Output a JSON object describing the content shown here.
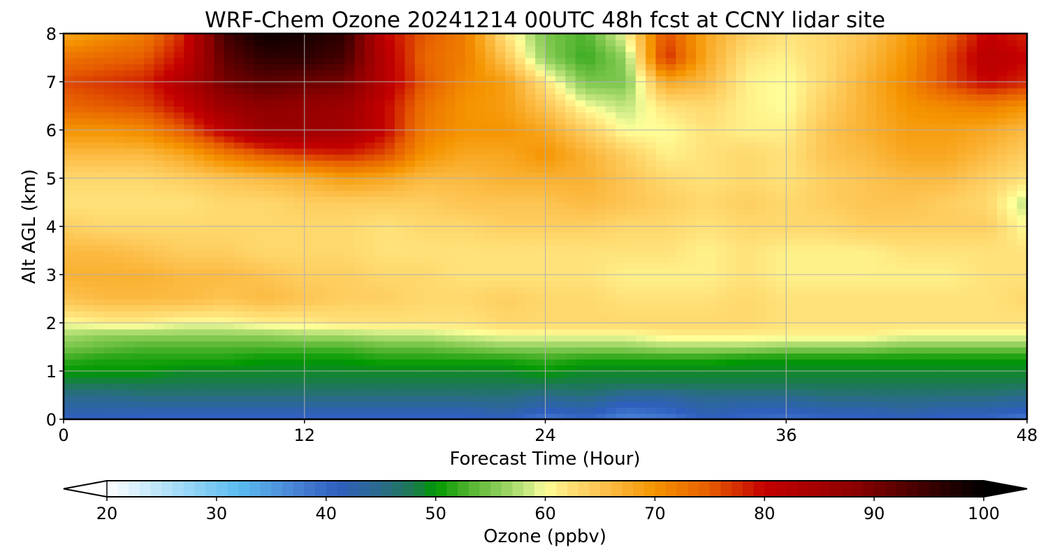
{
  "chart_data": {
    "type": "heatmap",
    "title": "WRF-Chem Ozone  20241214 00UTC 48h fcst at CCNY lidar site",
    "xlabel": "Forecast Time (Hour)",
    "ylabel": "Alt AGL (km)",
    "xlim": [
      0,
      48
    ],
    "ylim": [
      0,
      8
    ],
    "x_ticks": [
      "0",
      "12",
      "24",
      "36",
      "48"
    ],
    "y_ticks": [
      "0",
      "1",
      "2",
      "3",
      "4",
      "5",
      "6",
      "7",
      "8"
    ],
    "grid": true,
    "x": [
      0,
      2,
      4,
      6,
      8,
      10,
      12,
      14,
      16,
      18,
      20,
      22,
      24,
      26,
      28,
      30,
      32,
      34,
      36,
      38,
      40,
      42,
      44,
      46,
      48
    ],
    "y": [
      0,
      0.25,
      0.5,
      0.75,
      1,
      1.25,
      1.5,
      1.75,
      2,
      2.5,
      3,
      3.5,
      4,
      4.5,
      5,
      5.5,
      6,
      6.5,
      7,
      7.5,
      8
    ],
    "z": [
      [
        41,
        41,
        40,
        40,
        40,
        40,
        40,
        40,
        40,
        40,
        40,
        41,
        38,
        40,
        37,
        38,
        41,
        40,
        39,
        40,
        40,
        41,
        40,
        40,
        38
      ],
      [
        43,
        43,
        43,
        43,
        43,
        43,
        43,
        43,
        43,
        43,
        43,
        44,
        42,
        43,
        40,
        41,
        43,
        42,
        42,
        43,
        43,
        44,
        43,
        43,
        42
      ],
      [
        45,
        45,
        46,
        46,
        46,
        46,
        46,
        46,
        46,
        46,
        46,
        46,
        45,
        46,
        44,
        44,
        45,
        45,
        45,
        46,
        46,
        46,
        46,
        46,
        45
      ],
      [
        48,
        48,
        48,
        48,
        48,
        48,
        48,
        48,
        48,
        48,
        48,
        48,
        48,
        48,
        48,
        48,
        48,
        48,
        48,
        48,
        48,
        48,
        48,
        48,
        48
      ],
      [
        50,
        50,
        50,
        49,
        49,
        49,
        49,
        49,
        49,
        49,
        49,
        49,
        50,
        49,
        49,
        49,
        49,
        49,
        49,
        49,
        49,
        49,
        49,
        49,
        49
      ],
      [
        52,
        51,
        51,
        51,
        51,
        50,
        50,
        50,
        51,
        51,
        51,
        51,
        52,
        51,
        51,
        51,
        51,
        50,
        50,
        50,
        50,
        50,
        50,
        50,
        50
      ],
      [
        55,
        54,
        53,
        53,
        53,
        53,
        53,
        53,
        54,
        54,
        55,
        56,
        56,
        56,
        56,
        57,
        57,
        57,
        56,
        56,
        56,
        55,
        55,
        55,
        55
      ],
      [
        57,
        56,
        56,
        56,
        56,
        56,
        57,
        57,
        58,
        58,
        59,
        60,
        60,
        60,
        60,
        61,
        61,
        61,
        61,
        61,
        61,
        60,
        60,
        60,
        60
      ],
      [
        60,
        61,
        61,
        60,
        60,
        61,
        61,
        62,
        62,
        62,
        62,
        63,
        63,
        63,
        63,
        63,
        63,
        63,
        62,
        62,
        62,
        62,
        62,
        62,
        62
      ],
      [
        65,
        66,
        66,
        66,
        65,
        66,
        65,
        64,
        64,
        63,
        63,
        64,
        63,
        63,
        62,
        62,
        62,
        63,
        62,
        62,
        62,
        62,
        62,
        62,
        63
      ],
      [
        67,
        67,
        67,
        66,
        66,
        65,
        64,
        64,
        63,
        63,
        62,
        62,
        62,
        62,
        61,
        61,
        61,
        62,
        61,
        61,
        61,
        61,
        61,
        62,
        62
      ],
      [
        66,
        66,
        65,
        64,
        64,
        63,
        63,
        63,
        62,
        62,
        62,
        62,
        62,
        62,
        62,
        62,
        61,
        62,
        61,
        61,
        61,
        62,
        62,
        62,
        62
      ],
      [
        64,
        63,
        63,
        63,
        63,
        63,
        63,
        63,
        62,
        63,
        63,
        64,
        64,
        64,
        63,
        63,
        62,
        63,
        63,
        63,
        64,
        64,
        64,
        64,
        60
      ],
      [
        62,
        62,
        62,
        62,
        63,
        63,
        64,
        64,
        64,
        64,
        65,
        65,
        65,
        66,
        65,
        64,
        63,
        64,
        63,
        64,
        65,
        65,
        64,
        63,
        58
      ],
      [
        63,
        63,
        63,
        64,
        65,
        66,
        67,
        69,
        68,
        66,
        66,
        67,
        67,
        67,
        65,
        63,
        62,
        63,
        62,
        64,
        65,
        66,
        66,
        64,
        62
      ],
      [
        66,
        66,
        66,
        68,
        72,
        75,
        77,
        78,
        76,
        70,
        68,
        68,
        70,
        67,
        64,
        61,
        62,
        63,
        62,
        65,
        66,
        68,
        68,
        66,
        64
      ],
      [
        70,
        70,
        71,
        75,
        81,
        86,
        86,
        85,
        80,
        72,
        70,
        70,
        68,
        64,
        60,
        60,
        62,
        61,
        61,
        65,
        67,
        69,
        69,
        68,
        66
      ],
      [
        74,
        75,
        76,
        80,
        86,
        88,
        87,
        86,
        80,
        73,
        70,
        69,
        65,
        60,
        58,
        62,
        63,
        61,
        60,
        64,
        67,
        70,
        71,
        72,
        70
      ],
      [
        76,
        77,
        78,
        83,
        90,
        92,
        91,
        90,
        82,
        75,
        71,
        69,
        62,
        55,
        55,
        68,
        66,
        61,
        60,
        63,
        67,
        71,
        76,
        80,
        78
      ],
      [
        73,
        74,
        75,
        80,
        92,
        96,
        96,
        94,
        82,
        74,
        72,
        65,
        56,
        52,
        56,
        78,
        68,
        62,
        61,
        63,
        66,
        70,
        76,
        82,
        80
      ],
      [
        68,
        70,
        72,
        78,
        94,
        99,
        98,
        96,
        80,
        75,
        72,
        62,
        55,
        53,
        60,
        76,
        68,
        64,
        62,
        63,
        65,
        69,
        74,
        80,
        78
      ]
    ],
    "colorbar": {
      "label": "Ozone  (ppbv)",
      "min": 20,
      "max": 100,
      "extend": "both",
      "ticks": [
        "20",
        "30",
        "40",
        "50",
        "60",
        "70",
        "80",
        "90",
        "100"
      ],
      "stops": [
        {
          "v": 20,
          "c": "#ffffff"
        },
        {
          "v": 28,
          "c": "#8fd3f5"
        },
        {
          "v": 32,
          "c": "#5bbcf0"
        },
        {
          "v": 37,
          "c": "#4a86d6"
        },
        {
          "v": 41,
          "c": "#2f5fbf"
        },
        {
          "v": 45,
          "c": "#2b6a8c"
        },
        {
          "v": 48,
          "c": "#1c7a50"
        },
        {
          "v": 50,
          "c": "#009900"
        },
        {
          "v": 53,
          "c": "#4fb32e"
        },
        {
          "v": 57,
          "c": "#a6d96a"
        },
        {
          "v": 59,
          "c": "#d8ef8c"
        },
        {
          "v": 60,
          "c": "#ffff99"
        },
        {
          "v": 62,
          "c": "#ffe27a"
        },
        {
          "v": 65,
          "c": "#fdc452"
        },
        {
          "v": 70,
          "c": "#f59400"
        },
        {
          "v": 75,
          "c": "#e65c00"
        },
        {
          "v": 80,
          "c": "#c40000"
        },
        {
          "v": 88,
          "c": "#8e0000"
        },
        {
          "v": 95,
          "c": "#3a0000"
        },
        {
          "v": 100,
          "c": "#000000"
        }
      ]
    }
  }
}
